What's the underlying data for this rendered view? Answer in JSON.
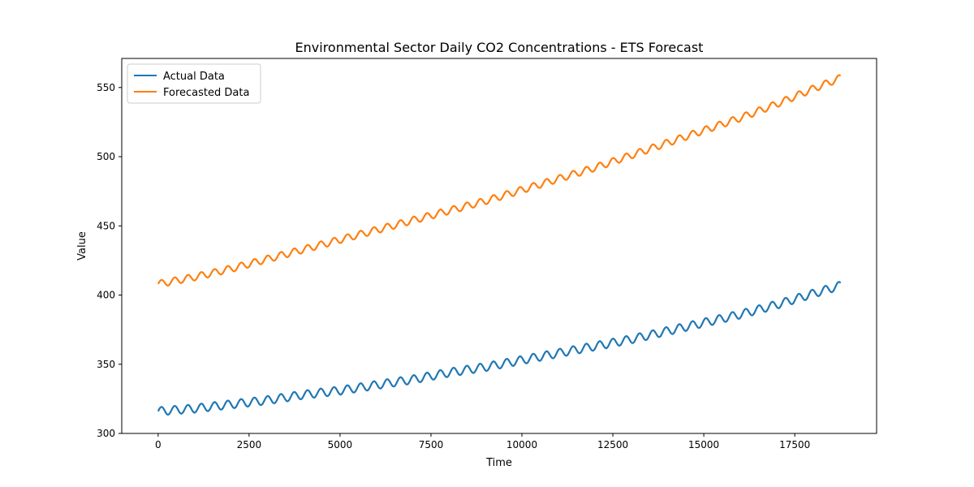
{
  "chart_data": {
    "type": "line",
    "title": "Environmental Sector Daily CO2 Concentrations - ETS Forecast",
    "xlabel": "Time",
    "ylabel": "Value",
    "xlim": [
      -1000,
      19750
    ],
    "ylim": [
      300,
      571
    ],
    "xticks": [
      0,
      2500,
      5000,
      7500,
      10000,
      12500,
      15000,
      17500
    ],
    "xtick_labels": [
      "0",
      "2500",
      "5000",
      "7500",
      "10000",
      "12500",
      "15000",
      "17500"
    ],
    "yticks": [
      300,
      350,
      400,
      450,
      500,
      550
    ],
    "ytick_labels": [
      "300",
      "350",
      "400",
      "450",
      "500",
      "550"
    ],
    "grid": false,
    "legend_position": "top-left",
    "series": [
      {
        "name": "Actual Data",
        "color": "#1f77b4",
        "x": [
          0,
          1000,
          2000,
          3000,
          4000,
          5000,
          6000,
          7000,
          8000,
          9000,
          10000,
          11000,
          12000,
          13000,
          14000,
          15000,
          16000,
          17000,
          18000,
          18770
        ],
        "values": [
          316,
          318,
          321,
          324,
          328,
          331,
          335,
          339,
          344,
          348,
          353,
          358,
          363,
          368,
          374,
          380,
          386,
          393,
          401,
          407
        ],
        "seasonal_amplitude": 3,
        "seasonal_period": 365
      },
      {
        "name": "Forecasted Data",
        "color": "#ff7f0e",
        "x": [
          0,
          1000,
          2000,
          3000,
          4000,
          5000,
          6000,
          7000,
          8000,
          9000,
          10000,
          11000,
          12000,
          13000,
          14000,
          15000,
          16000,
          17000,
          18000,
          18770
        ],
        "values": [
          408,
          413,
          419,
          426,
          433,
          440,
          447,
          454,
          461,
          468,
          476,
          484,
          492,
          501,
          510,
          519,
          528,
          538,
          549,
          557
        ],
        "seasonal_amplitude": 2.5,
        "seasonal_period": 365
      }
    ]
  }
}
